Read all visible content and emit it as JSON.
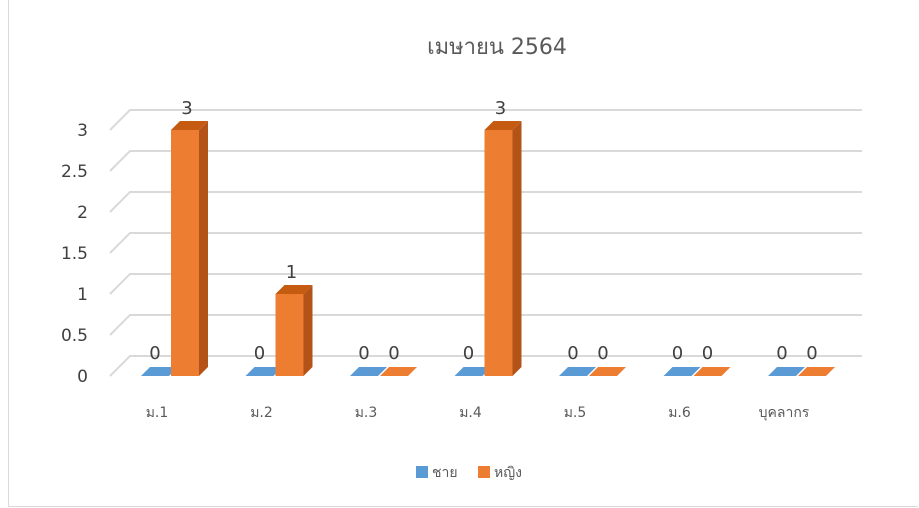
{
  "chart_data": {
    "type": "bar",
    "title": "เมษายน 2564",
    "categories": [
      "ม.1",
      "ม.2",
      "ม.3",
      "ม.4",
      "ม.5",
      "ม.6",
      "บุคลากร"
    ],
    "series": [
      {
        "name": "ชาย",
        "values": [
          0,
          0,
          0,
          0,
          0,
          0,
          0
        ]
      },
      {
        "name": "หญิง",
        "values": [
          3,
          1,
          0,
          3,
          0,
          0,
          0
        ]
      }
    ],
    "ylim": [
      0,
      3
    ],
    "yticks": [
      "0",
      "0.5",
      "1",
      "1.5",
      "2",
      "2.5",
      "3"
    ],
    "grid": true,
    "legend_position": "bottom",
    "data_labels": true,
    "style": "3d-column",
    "colors": {
      "series_front": [
        "#5b9bd5",
        "#ed7d31"
      ],
      "series_top": [
        "#3a7dbd",
        "#c55a11"
      ],
      "series_side": [
        "#2e6ba6",
        "#b35317"
      ],
      "grid": "#d9d9d9"
    }
  }
}
